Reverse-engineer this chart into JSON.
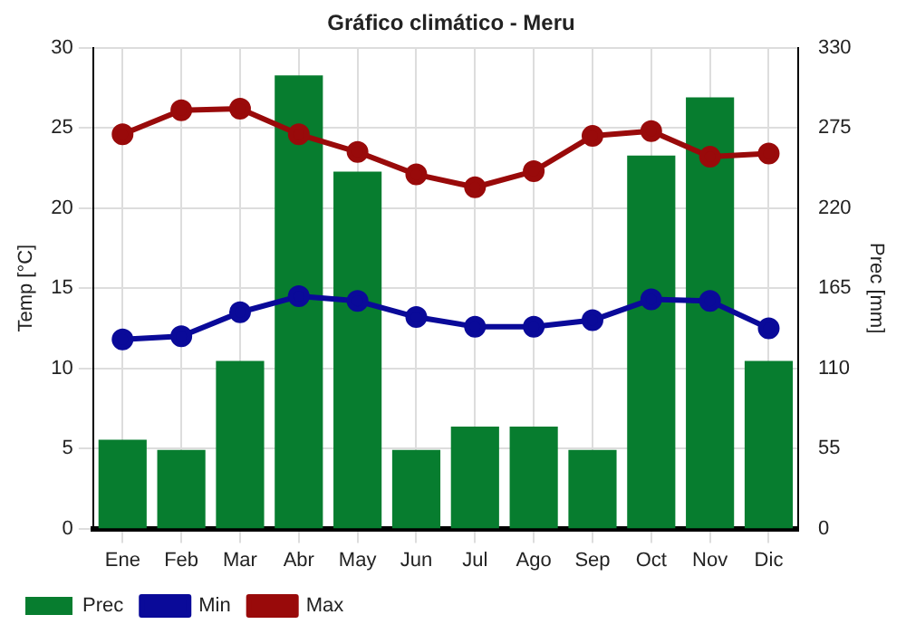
{
  "chart_data": {
    "type": "bar",
    "title": "Gráfico climático - Meru",
    "ylabel": "Temp [°C]",
    "y2label": "Prec [mm]",
    "categories": [
      "Ene",
      "Feb",
      "Mar",
      "Abr",
      "May",
      "Jun",
      "Jul",
      "Ago",
      "Sep",
      "Oct",
      "Nov",
      "Dic"
    ],
    "series": [
      {
        "name": "Prec",
        "axis": "y2",
        "color": "#077d2f",
        "values": [
          61,
          54,
          115,
          311,
          245,
          54,
          70,
          70,
          54,
          256,
          296,
          115
        ]
      },
      {
        "name": "Min",
        "type": "line",
        "color": "#0a0a99",
        "values": [
          11.8,
          12.0,
          13.5,
          14.5,
          14.2,
          13.2,
          12.6,
          12.6,
          13.0,
          14.3,
          14.2,
          12.5
        ]
      },
      {
        "name": "Max",
        "type": "line",
        "color": "#990a0a",
        "values": [
          24.6,
          26.1,
          26.2,
          24.6,
          23.5,
          22.1,
          21.3,
          22.3,
          24.5,
          24.8,
          23.2,
          23.4
        ]
      }
    ],
    "ylim": [
      0,
      30
    ],
    "yticks": [
      0,
      5,
      10,
      15,
      20,
      25,
      30
    ],
    "y2lim": [
      0,
      330
    ],
    "y2ticks": [
      0,
      55,
      110,
      165,
      220,
      275,
      330
    ],
    "grid": true,
    "legend": "bottom left",
    "marker": "circle",
    "line_style": "solid"
  }
}
